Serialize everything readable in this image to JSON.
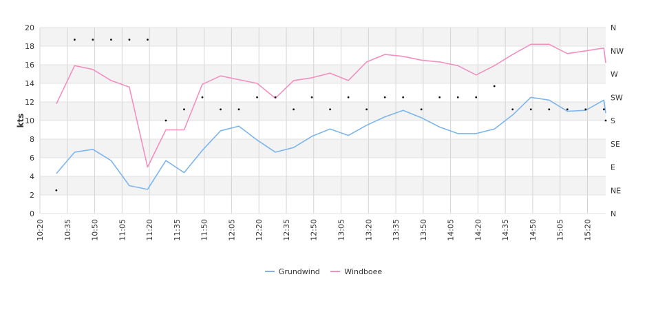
{
  "chart_data": {
    "type": "line",
    "ylabel": "kts",
    "ylim": [
      0,
      20
    ],
    "y_ticks": [
      0,
      2,
      4,
      6,
      8,
      10,
      12,
      14,
      16,
      18,
      20
    ],
    "x_tick_labels": [
      "10:20",
      "10:35",
      "10:50",
      "11:05",
      "11:20",
      "11:35",
      "11:50",
      "12:05",
      "12:20",
      "12:35",
      "12:50",
      "13:05",
      "13:20",
      "13:35",
      "13:50",
      "14:05",
      "14:20",
      "14:35",
      "14:50",
      "15:05",
      "15:20"
    ],
    "x_range": [
      "10:20",
      "15:30"
    ],
    "direction_ticks": [
      "N",
      "NE",
      "E",
      "SE",
      "S",
      "SW",
      "W",
      "NW",
      "N"
    ],
    "grid": true,
    "legend_position": "bottom",
    "series": [
      {
        "name": "Grundwind",
        "color": "#7cb5ec",
        "points": [
          [
            "10:29",
            4.3
          ],
          [
            "10:39",
            6.6
          ],
          [
            "10:49",
            6.9
          ],
          [
            "10:59",
            5.7
          ],
          [
            "11:09",
            3.0
          ],
          [
            "11:19",
            2.6
          ],
          [
            "11:29",
            5.7
          ],
          [
            "11:39",
            4.4
          ],
          [
            "11:49",
            6.8
          ],
          [
            "11:59",
            8.9
          ],
          [
            "12:09",
            9.4
          ],
          [
            "12:19",
            7.9
          ],
          [
            "12:29",
            6.6
          ],
          [
            "12:39",
            7.1
          ],
          [
            "12:49",
            8.3
          ],
          [
            "12:59",
            9.1
          ],
          [
            "13:09",
            8.4
          ],
          [
            "13:19",
            9.5
          ],
          [
            "13:29",
            10.4
          ],
          [
            "13:39",
            11.1
          ],
          [
            "13:49",
            10.3
          ],
          [
            "13:59",
            9.3
          ],
          [
            "14:09",
            8.6
          ],
          [
            "14:19",
            8.6
          ],
          [
            "14:29",
            9.1
          ],
          [
            "14:39",
            10.6
          ],
          [
            "14:49",
            12.5
          ],
          [
            "14:59",
            12.2
          ],
          [
            "15:09",
            11.0
          ],
          [
            "15:19",
            11.1
          ],
          [
            "15:29",
            12.2
          ],
          [
            "15:30",
            10.8
          ]
        ]
      },
      {
        "name": "Windboee",
        "color": "#f28fbe",
        "points": [
          [
            "10:29",
            11.8
          ],
          [
            "10:39",
            15.9
          ],
          [
            "10:49",
            15.5
          ],
          [
            "10:59",
            14.3
          ],
          [
            "11:09",
            13.6
          ],
          [
            "11:19",
            5.0
          ],
          [
            "11:29",
            9.0
          ],
          [
            "11:39",
            9.0
          ],
          [
            "11:49",
            13.9
          ],
          [
            "11:59",
            14.8
          ],
          [
            "12:09",
            14.4
          ],
          [
            "12:19",
            14.0
          ],
          [
            "12:29",
            12.4
          ],
          [
            "12:39",
            14.3
          ],
          [
            "12:49",
            14.6
          ],
          [
            "12:59",
            15.1
          ],
          [
            "13:09",
            14.3
          ],
          [
            "13:19",
            16.3
          ],
          [
            "13:29",
            17.1
          ],
          [
            "13:39",
            16.9
          ],
          [
            "13:49",
            16.5
          ],
          [
            "13:59",
            16.3
          ],
          [
            "14:09",
            15.9
          ],
          [
            "14:19",
            14.9
          ],
          [
            "14:29",
            15.9
          ],
          [
            "14:39",
            17.1
          ],
          [
            "14:49",
            18.2
          ],
          [
            "14:59",
            18.2
          ],
          [
            "15:09",
            17.2
          ],
          [
            "15:19",
            17.5
          ],
          [
            "15:29",
            17.8
          ],
          [
            "15:30",
            16.2
          ]
        ]
      }
    ],
    "direction_points": [
      [
        "10:29",
        2.5
      ],
      [
        "10:39",
        18.7
      ],
      [
        "10:49",
        18.7
      ],
      [
        "10:59",
        18.7
      ],
      [
        "11:09",
        18.7
      ],
      [
        "11:19",
        18.7
      ],
      [
        "11:29",
        10.0
      ],
      [
        "11:39",
        11.2
      ],
      [
        "11:49",
        12.5
      ],
      [
        "11:59",
        11.2
      ],
      [
        "12:09",
        11.2
      ],
      [
        "12:19",
        12.5
      ],
      [
        "12:29",
        12.5
      ],
      [
        "12:39",
        11.2
      ],
      [
        "12:49",
        12.5
      ],
      [
        "12:59",
        11.2
      ],
      [
        "13:09",
        12.5
      ],
      [
        "13:19",
        11.2
      ],
      [
        "13:29",
        12.5
      ],
      [
        "13:39",
        12.5
      ],
      [
        "13:49",
        11.2
      ],
      [
        "13:59",
        12.5
      ],
      [
        "14:09",
        12.5
      ],
      [
        "14:19",
        12.5
      ],
      [
        "14:29",
        13.7
      ],
      [
        "14:39",
        11.2
      ],
      [
        "14:49",
        11.2
      ],
      [
        "14:59",
        11.2
      ],
      [
        "15:09",
        11.2
      ],
      [
        "15:19",
        11.2
      ],
      [
        "15:29",
        11.2
      ],
      [
        "15:30",
        10.0
      ]
    ]
  }
}
